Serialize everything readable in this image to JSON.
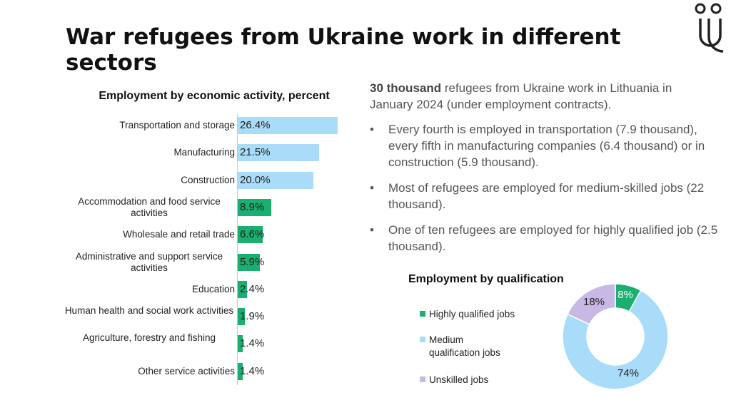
{
  "slide": {
    "title": "War refugees from Ukraine work in different sectors"
  },
  "summary": {
    "bold_lead": "30 thousand",
    "rest": " refugees from Ukraine work in Lithuania in January 2024 (under employment contracts).",
    "bullets": [
      "Every fourth is employed in transportation (7.9 thousand), every fifth in manufacturing companies (6.4 thousand) or in construction (5.9 thousand).",
      "Most of refugees are employed for medium-skilled jobs (22 thousand).",
      "One of ten refugees are employed for highly qualified job (2.5 thousand)."
    ],
    "bullet_glyph": "•"
  },
  "colors": {
    "light_blue": "#a9dcf8",
    "green": "#1aae6f",
    "lavender": "#c7b8e6"
  },
  "chart_data": [
    {
      "type": "bar",
      "orientation": "horizontal",
      "title": "Employment by economic activity, percent",
      "categories": [
        "Transportation and storage",
        "Manufacturing",
        "Construction",
        "Accommodation and food service activities",
        "Wholesale and retail trade",
        "Administrative and support service activities",
        "Education",
        "Human health and social work activities",
        "Agriculture, forestry and fishing",
        "Other service activities"
      ],
      "values": [
        26.4,
        21.5,
        20.0,
        8.9,
        6.6,
        5.9,
        2.4,
        1.9,
        1.4,
        1.4
      ],
      "data_labels": [
        "26.4%",
        "21.5%",
        "20.0%",
        "8.9%",
        "6.6%",
        "5.9%",
        "2.4%",
        "1.9%",
        "1.4%",
        "1.4%"
      ],
      "bar_colors": [
        "#a9dcf8",
        "#a9dcf8",
        "#a9dcf8",
        "#1aae6f",
        "#1aae6f",
        "#1aae6f",
        "#1aae6f",
        "#1aae6f",
        "#1aae6f",
        "#1aae6f"
      ],
      "xlim": [
        0,
        30
      ],
      "grid": false,
      "legend": "none"
    },
    {
      "type": "pie",
      "style": "donut",
      "title": "Employment by qualification",
      "categories": [
        "Highly qualified jobs",
        "Medium qualification jobs",
        "Unskilled jobs"
      ],
      "values": [
        8,
        74,
        18
      ],
      "data_labels": [
        "8%",
        "74%",
        "18%"
      ],
      "colors": [
        "#1aae6f",
        "#a9dcf8",
        "#c7b8e6"
      ],
      "legend": "left"
    }
  ]
}
